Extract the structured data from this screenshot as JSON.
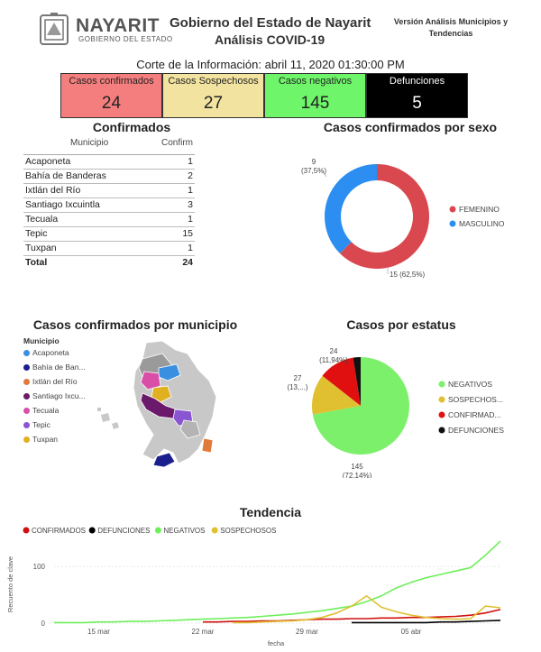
{
  "header": {
    "brand_name": "NAYARIT",
    "brand_sub": "GOBIERNO DEL ESTADO",
    "title_line1": "Gobierno del Estado de Nayarit",
    "title_line2": "Análisis COVID-19",
    "version_line1": "Versión Análisis Municipios y",
    "version_line2": "Tendencias"
  },
  "cutoff": "Corte de la Información: abril 11, 2020 01:30:00 PM",
  "cards": [
    {
      "label": "Casos confirmados",
      "value": "24",
      "color": "#f47e7e"
    },
    {
      "label": "Casos Sospechosos",
      "value": "27",
      "color": "#f2e4a0"
    },
    {
      "label": "Casos negativos",
      "value": "145",
      "color": "#6ef56a"
    },
    {
      "label": "Defunciones",
      "value": "5",
      "color": "#000000"
    }
  ],
  "confirmados_table": {
    "title": "Confirmados",
    "col_municipio": "Municipio",
    "col_confirm": "Confirm",
    "rows": [
      {
        "municipio": "Acaponeta",
        "confirm": "1"
      },
      {
        "municipio": "Bahía de Banderas",
        "confirm": "2"
      },
      {
        "municipio": "Ixtlán del Río",
        "confirm": "1"
      },
      {
        "municipio": "Santiago Ixcuintla",
        "confirm": "3"
      },
      {
        "municipio": "Tecuala",
        "confirm": "1"
      },
      {
        "municipio": "Tepic",
        "confirm": "15"
      },
      {
        "municipio": "Tuxpan",
        "confirm": "1"
      }
    ],
    "total_label": "Total",
    "total_value": "24"
  },
  "map": {
    "title": "Casos confirmados por municipio",
    "legend_title": "Municipio",
    "legend": [
      {
        "name": "Acaponeta",
        "color": "#3a8fe0"
      },
      {
        "name": "Bahía de Ban...",
        "color": "#1a1f8c"
      },
      {
        "name": "Ixtlán del Río",
        "color": "#e07a3a"
      },
      {
        "name": "Santiago Ixcu...",
        "color": "#6b1a6b"
      },
      {
        "name": "Tecuala",
        "color": "#d94fa8"
      },
      {
        "name": "Tepic",
        "color": "#8a55d0"
      },
      {
        "name": "Tuxpan",
        "color": "#e0b020"
      }
    ]
  },
  "chart_data": [
    {
      "type": "pie",
      "title": "Casos confirmados por sexo",
      "donut": true,
      "labels": [
        "FEMENINO",
        "MASCULINO"
      ],
      "values": [
        15,
        9
      ],
      "data_labels": [
        "15 (62,5%)",
        "9\n(37,5%)"
      ],
      "colors": [
        "#d9474f",
        "#2b8ef0"
      ],
      "legend": "right"
    },
    {
      "type": "pie",
      "title": "Casos por estatus",
      "donut": false,
      "labels": [
        "NEGATIVOS",
        "SOSPECHOS...",
        "CONFIRMAD...",
        "DEFUNCIONES"
      ],
      "values": [
        145,
        27,
        24,
        5
      ],
      "data_labels": [
        "145\n(72,14%)",
        "27\n(13,...)",
        "24\n(11,94%)",
        ""
      ],
      "colors": [
        "#7cf06a",
        "#e0c030",
        "#e01010",
        "#111111"
      ],
      "legend": "right"
    },
    {
      "type": "line",
      "title": "Tendencia",
      "xlabel": "fecha",
      "ylabel": "Recuento de clave",
      "x_ticks": [
        "15 mar",
        "22 mar",
        "29 mar",
        "05 abr"
      ],
      "y_ticks": [
        0,
        100
      ],
      "ylim": [
        0,
        140
      ],
      "legend": "top-left",
      "x_dates": [
        "2020-03-12",
        "2020-03-13",
        "2020-03-14",
        "2020-03-15",
        "2020-03-16",
        "2020-03-17",
        "2020-03-18",
        "2020-03-19",
        "2020-03-20",
        "2020-03-21",
        "2020-03-22",
        "2020-03-23",
        "2020-03-24",
        "2020-03-25",
        "2020-03-26",
        "2020-03-27",
        "2020-03-28",
        "2020-03-29",
        "2020-03-30",
        "2020-03-31",
        "2020-04-01",
        "2020-04-02",
        "2020-04-03",
        "2020-04-04",
        "2020-04-05",
        "2020-04-06",
        "2020-04-07",
        "2020-04-08",
        "2020-04-09",
        "2020-04-10",
        "2020-04-11"
      ],
      "series": [
        {
          "name": "CONFIRMADOS",
          "color": "#d01010",
          "values": [
            null,
            null,
            null,
            null,
            null,
            null,
            null,
            null,
            null,
            null,
            2,
            2,
            3,
            3,
            4,
            4,
            5,
            6,
            7,
            7,
            8,
            8,
            9,
            9,
            10,
            10,
            11,
            12,
            14,
            18,
            24
          ]
        },
        {
          "name": "DEFUNCIONES",
          "color": "#000000",
          "values": [
            null,
            null,
            null,
            null,
            null,
            null,
            null,
            null,
            null,
            null,
            null,
            null,
            null,
            null,
            null,
            null,
            null,
            null,
            null,
            null,
            1,
            1,
            1,
            1,
            1,
            1,
            2,
            2,
            3,
            4,
            5
          ]
        },
        {
          "name": "NEGATIVOS",
          "color": "#6ef05a",
          "values": [
            1,
            1,
            1,
            2,
            2,
            3,
            3,
            4,
            5,
            6,
            7,
            8,
            9,
            10,
            12,
            14,
            16,
            19,
            22,
            26,
            30,
            38,
            48,
            62,
            72,
            80,
            86,
            92,
            98,
            120,
            145
          ]
        },
        {
          "name": "SOSPECHOSOS",
          "color": "#e0c030",
          "values": [
            null,
            null,
            null,
            null,
            null,
            null,
            null,
            null,
            null,
            null,
            null,
            null,
            1,
            1,
            2,
            3,
            4,
            6,
            10,
            18,
            30,
            48,
            28,
            20,
            14,
            10,
            8,
            7,
            8,
            30,
            27
          ]
        }
      ]
    }
  ]
}
